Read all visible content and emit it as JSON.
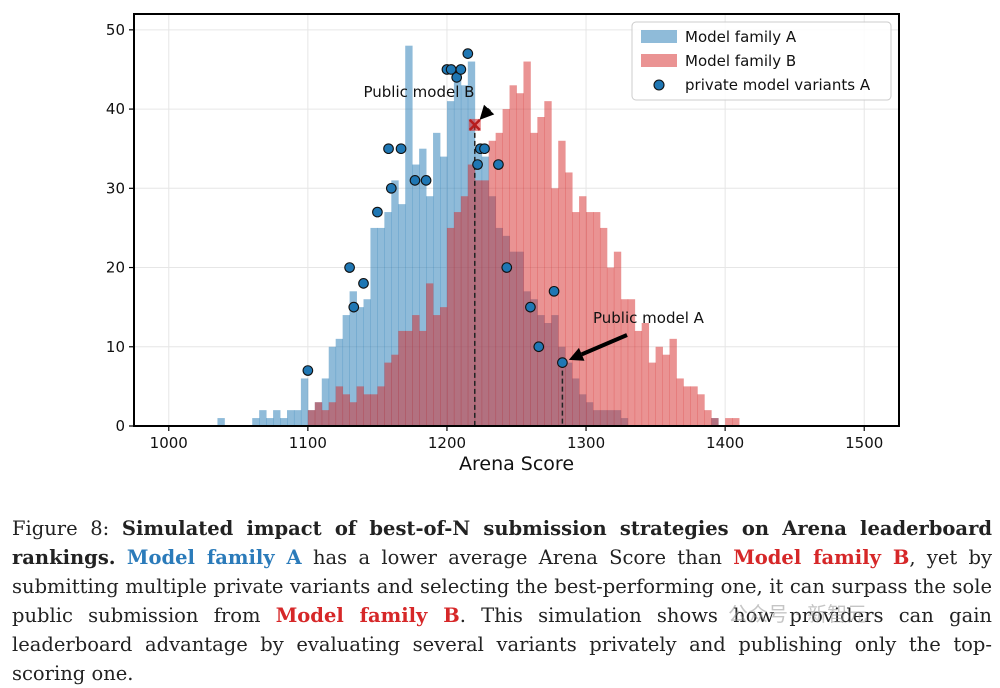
{
  "chart_data": {
    "type": "histogram",
    "xlabel": "Arena Score",
    "ylabel": "",
    "xlim": [
      975,
      1525
    ],
    "ylim": [
      0,
      52
    ],
    "xticks": [
      1000,
      1100,
      1200,
      1300,
      1400,
      1500
    ],
    "yticks": [
      0,
      10,
      20,
      30,
      40,
      50
    ],
    "grid": true,
    "legend_position": "top-right",
    "bin_width": 5,
    "series": [
      {
        "name": "Model family A",
        "color": "#1f77b4",
        "alpha": 0.5,
        "bins": [
          [
            1035,
            1
          ],
          [
            1060,
            1
          ],
          [
            1065,
            2
          ],
          [
            1070,
            1
          ],
          [
            1075,
            2
          ],
          [
            1080,
            1
          ],
          [
            1085,
            2
          ],
          [
            1090,
            2
          ],
          [
            1095,
            6
          ],
          [
            1100,
            2
          ],
          [
            1105,
            3
          ],
          [
            1110,
            6
          ],
          [
            1115,
            10
          ],
          [
            1120,
            11
          ],
          [
            1125,
            14
          ],
          [
            1130,
            17
          ],
          [
            1135,
            15
          ],
          [
            1140,
            16
          ],
          [
            1145,
            25
          ],
          [
            1150,
            25
          ],
          [
            1155,
            27
          ],
          [
            1160,
            31
          ],
          [
            1165,
            28
          ],
          [
            1170,
            48
          ],
          [
            1175,
            33
          ],
          [
            1180,
            35
          ],
          [
            1185,
            29
          ],
          [
            1190,
            37
          ],
          [
            1195,
            34
          ],
          [
            1200,
            41
          ],
          [
            1205,
            45
          ],
          [
            1210,
            43
          ],
          [
            1215,
            46
          ],
          [
            1220,
            35
          ],
          [
            1225,
            34
          ],
          [
            1230,
            29
          ],
          [
            1235,
            25
          ],
          [
            1240,
            24
          ],
          [
            1245,
            22
          ],
          [
            1250,
            22
          ],
          [
            1255,
            17
          ],
          [
            1260,
            16
          ],
          [
            1265,
            14
          ],
          [
            1270,
            13
          ],
          [
            1275,
            14
          ],
          [
            1280,
            10
          ],
          [
            1285,
            8
          ],
          [
            1290,
            6
          ],
          [
            1295,
            4
          ],
          [
            1300,
            3
          ],
          [
            1305,
            2
          ],
          [
            1310,
            2
          ],
          [
            1315,
            2
          ],
          [
            1320,
            2
          ],
          [
            1325,
            1
          ],
          [
            1390,
            1
          ]
        ]
      },
      {
        "name": "Model family B",
        "color": "#d62728",
        "alpha": 0.5,
        "bins": [
          [
            1100,
            2
          ],
          [
            1105,
            3
          ],
          [
            1110,
            2
          ],
          [
            1115,
            3
          ],
          [
            1120,
            5
          ],
          [
            1125,
            4
          ],
          [
            1130,
            3
          ],
          [
            1135,
            5
          ],
          [
            1140,
            4
          ],
          [
            1145,
            4
          ],
          [
            1150,
            5
          ],
          [
            1155,
            8
          ],
          [
            1160,
            9
          ],
          [
            1165,
            12
          ],
          [
            1170,
            12
          ],
          [
            1175,
            14
          ],
          [
            1180,
            12
          ],
          [
            1185,
            18
          ],
          [
            1190,
            14
          ],
          [
            1195,
            15
          ],
          [
            1200,
            25
          ],
          [
            1205,
            27
          ],
          [
            1210,
            29
          ],
          [
            1215,
            33
          ],
          [
            1220,
            31
          ],
          [
            1225,
            31
          ],
          [
            1230,
            36
          ],
          [
            1235,
            37
          ],
          [
            1240,
            40
          ],
          [
            1245,
            43
          ],
          [
            1250,
            42
          ],
          [
            1255,
            46
          ],
          [
            1260,
            37
          ],
          [
            1265,
            39
          ],
          [
            1270,
            41
          ],
          [
            1275,
            30
          ],
          [
            1280,
            36
          ],
          [
            1285,
            32
          ],
          [
            1290,
            27
          ],
          [
            1295,
            29
          ],
          [
            1300,
            27
          ],
          [
            1305,
            27
          ],
          [
            1310,
            25
          ],
          [
            1315,
            20
          ],
          [
            1320,
            22
          ],
          [
            1325,
            16
          ],
          [
            1330,
            16
          ],
          [
            1335,
            12
          ],
          [
            1340,
            13
          ],
          [
            1345,
            8
          ],
          [
            1350,
            10
          ],
          [
            1355,
            9
          ],
          [
            1360,
            11
          ],
          [
            1365,
            6
          ],
          [
            1370,
            5
          ],
          [
            1375,
            5
          ],
          [
            1380,
            4
          ],
          [
            1385,
            2
          ],
          [
            1390,
            1
          ],
          [
            1400,
            1
          ],
          [
            1405,
            1
          ]
        ]
      }
    ],
    "scatter": {
      "name": "private model variants A",
      "color": "#1f77b4",
      "points": [
        [
          1100,
          7
        ],
        [
          1130,
          20
        ],
        [
          1133,
          15
        ],
        [
          1140,
          18
        ],
        [
          1150,
          27
        ],
        [
          1158,
          35
        ],
        [
          1160,
          30
        ],
        [
          1167,
          35
        ],
        [
          1177,
          31
        ],
        [
          1185,
          31
        ],
        [
          1200,
          45
        ],
        [
          1203,
          45
        ],
        [
          1207,
          44
        ],
        [
          1210,
          45
        ],
        [
          1215,
          47
        ],
        [
          1222,
          33
        ],
        [
          1224,
          35
        ],
        [
          1227,
          35
        ],
        [
          1237,
          33
        ],
        [
          1243,
          20
        ],
        [
          1260,
          15
        ],
        [
          1266,
          10
        ],
        [
          1277,
          17
        ],
        [
          1283,
          8
        ]
      ]
    },
    "annotations": [
      {
        "text": "Public model B",
        "target": [
          1220,
          38
        ],
        "text_at": [
          1140,
          41.5
        ],
        "marker": "x",
        "marker_color": "#d62728"
      },
      {
        "text": "Public model A",
        "target": [
          1283,
          8
        ],
        "text_at": [
          1305,
          13
        ],
        "marker": "none"
      }
    ],
    "vlines": [
      {
        "x": 1220,
        "ymax": 38,
        "style": "dashed"
      },
      {
        "x": 1283,
        "ymax": 8,
        "style": "dashed"
      }
    ]
  },
  "caption": {
    "prefix": "Figure 8:",
    "bold": "Simulated impact of best-of-N submission strategies on Arena leaderboard rankings.",
    "famA": "Model family A",
    "t1": "has a lower average Arena Score than",
    "famB": "Model family B",
    "t2": ", yet by submitting multiple private variants and selecting the best-performing one, it can surpass the sole public submission from",
    "famB2": "Model family B",
    "t3": ". This simulation shows how providers can gain leaderboard advantage by evaluating several variants privately and publishing only the top-scoring one."
  },
  "watermark": "公众号 · 新智元"
}
